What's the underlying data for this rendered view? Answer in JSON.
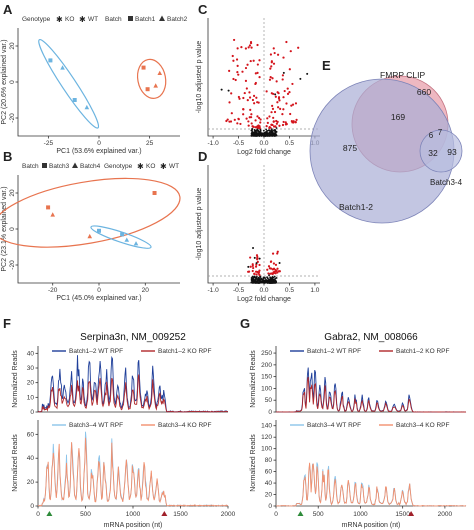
{
  "panels": {
    "A": "A",
    "B": "B",
    "C": "C",
    "D": "D",
    "E": "E",
    "F": "F",
    "G": "G"
  },
  "colors": {
    "ko": "#e8744f",
    "wt": "#6cb4e0",
    "red": "#d4141c",
    "black": "#111111",
    "navy": "#1f3f9a",
    "crimson": "#b0282b",
    "lightblue": "#8cc4ea",
    "salmon": "#f2906e",
    "venn_pink": "#e8a0ac",
    "venn_blue": "#a9aed6",
    "venn_small": "#b8bddf",
    "tri_green": "#2e8b3a",
    "tri_red": "#a0202a"
  },
  "pca": [
    {
      "panel": "A",
      "legend": {
        "genotype_label": "Genotype",
        "ko": "KO",
        "wt": "WT",
        "batch_label": "Batch",
        "batch1": "Batch1",
        "batch2": "Batch2"
      },
      "xlabel": "PC1 (53.6% explained var.)",
      "ylabel": "PC2 (20.6% explained var.)",
      "xticks": [
        "-25",
        "0",
        "25"
      ],
      "yticks": [
        "-20",
        "0",
        "20"
      ],
      "chart_data": {
        "type": "scatter",
        "xlim": [
          -40,
          40
        ],
        "ylim": [
          -30,
          30
        ],
        "points": [
          {
            "g": "KO",
            "b": "Batch1",
            "x": 22,
            "y": 8
          },
          {
            "g": "KO",
            "b": "Batch2",
            "x": 30,
            "y": 5
          },
          {
            "g": "KO",
            "b": "Batch1",
            "x": 24,
            "y": -4
          },
          {
            "g": "KO",
            "b": "Batch2",
            "x": 28,
            "y": -2
          },
          {
            "g": "WT",
            "b": "Batch1",
            "x": -24,
            "y": 12
          },
          {
            "g": "WT",
            "b": "Batch2",
            "x": -18,
            "y": 8
          },
          {
            "g": "WT",
            "b": "Batch1",
            "x": -12,
            "y": -10
          },
          {
            "g": "WT",
            "b": "Batch2",
            "x": -6,
            "y": -14
          }
        ]
      }
    },
    {
      "panel": "B",
      "legend": {
        "batch_label": "Batch",
        "batch3": "Batch3",
        "batch4": "Batch4",
        "genotype_label": "Genotype",
        "ko": "KO",
        "wt": "WT"
      },
      "xlabel": "PC1 (45.0% explained var.)",
      "ylabel": "PC2 (23.1% explained var.)",
      "xticks": [
        "-20",
        "0",
        "20"
      ],
      "yticks": [
        "-20",
        "0",
        "20"
      ],
      "chart_data": {
        "type": "scatter",
        "xlim": [
          -35,
          35
        ],
        "ylim": [
          -30,
          30
        ],
        "points": [
          {
            "g": "KO",
            "b": "Batch3",
            "x": 24,
            "y": 20
          },
          {
            "g": "KO",
            "b": "Batch3",
            "x": -22,
            "y": 12
          },
          {
            "g": "KO",
            "b": "Batch4",
            "x": -20,
            "y": 8
          },
          {
            "g": "KO",
            "b": "Batch4",
            "x": -4,
            "y": -4
          },
          {
            "g": "WT",
            "b": "Batch3",
            "x": 0,
            "y": -1
          },
          {
            "g": "WT",
            "b": "Batch3",
            "x": 10,
            "y": -3
          },
          {
            "g": "WT",
            "b": "Batch4",
            "x": 16,
            "y": -8
          },
          {
            "g": "WT",
            "b": "Batch4",
            "x": 12,
            "y": -6
          }
        ]
      }
    }
  ],
  "volcano": [
    {
      "panel": "C",
      "ylabel": "-log10 adjusted p value",
      "xlabel": "Log2 fold change",
      "xticks": [
        "-1.0",
        "-0.5",
        "0.0",
        "0.5",
        "1.0"
      ],
      "chart_data": {
        "type": "scatter",
        "xlim": [
          -1.1,
          1.1
        ],
        "ylim": [
          0,
          22
        ],
        "threshold_y": 1.3,
        "spread": 1.0,
        "n_red": 170,
        "n_black": 260
      }
    },
    {
      "panel": "D",
      "ylabel": "-log10 adjusted p value",
      "xlabel": "Log2 fold change",
      "xticks": [
        "-1.0",
        "-0.5",
        "0.0",
        "0.5",
        "1.0"
      ],
      "chart_data": {
        "type": "scatter",
        "xlim": [
          -1.1,
          1.1
        ],
        "ylim": [
          0,
          22
        ],
        "threshold_y": 1.3,
        "spread": 0.35,
        "n_red": 55,
        "n_black": 260
      }
    }
  ],
  "venn": {
    "labels": {
      "fmrp": "FMRP CLIP",
      "b12": "Batch1-2",
      "b34": "Batch3-4"
    },
    "counts": {
      "fmrp_only": "660",
      "b12_only": "875",
      "b34_only": "93",
      "fmrp_b12": "169",
      "fmrp_b34": "7",
      "all": "6",
      "b12_b34": "32"
    }
  },
  "profiles": [
    {
      "panel": "F",
      "title": "Serpina3n, NM_009252",
      "xlabel": "mRNA position (nt)",
      "xticks": [
        "0",
        "500",
        "1000",
        "1500",
        "2000"
      ],
      "xmax": 2000,
      "cds": [
        120,
        1330
      ],
      "top": {
        "ylabel": "Normalized Reads",
        "yticks": [
          "0",
          "10",
          "20",
          "30",
          "40"
        ],
        "ymax": 45,
        "legend": [
          "Batch1–2 WT RPF",
          "Batch1–2 KO RPF"
        ],
        "chart_data": {
          "type": "line",
          "start": 40,
          "end": 1350,
          "peaks": [
            [
              150,
              30
            ],
            [
              230,
              36
            ],
            [
              280,
              20
            ],
            [
              350,
              28
            ],
            [
              420,
              40
            ],
            [
              470,
              22
            ],
            [
              540,
              44
            ],
            [
              600,
              30
            ],
            [
              650,
              38
            ],
            [
              720,
              26
            ],
            [
              780,
              42
            ],
            [
              840,
              18
            ],
            [
              920,
              30
            ],
            [
              1000,
              24
            ],
            [
              1060,
              34
            ],
            [
              1140,
              14
            ],
            [
              1210,
              30
            ],
            [
              1280,
              20
            ],
            [
              1320,
              10
            ]
          ],
          "ko_ratio": 0.65
        }
      },
      "bottom": {
        "ylabel": "Normalized Reads",
        "yticks": [
          "0",
          "20",
          "40",
          "60"
        ],
        "ymax": 72,
        "legend": [
          "Batch3–4 WT RPF",
          "Batch3–4 KO RPF"
        ],
        "chart_data": {
          "type": "line",
          "start": 40,
          "end": 1350,
          "peaks": [
            [
              100,
              40
            ],
            [
              160,
              60
            ],
            [
              220,
              54
            ],
            [
              300,
              44
            ],
            [
              360,
              56
            ],
            [
              430,
              48
            ],
            [
              500,
              60
            ],
            [
              570,
              42
            ],
            [
              640,
              58
            ],
            [
              700,
              40
            ],
            [
              780,
              54
            ],
            [
              850,
              36
            ],
            [
              930,
              50
            ],
            [
              1000,
              40
            ],
            [
              1060,
              34
            ],
            [
              1120,
              46
            ],
            [
              1190,
              30
            ],
            [
              1250,
              22
            ],
            [
              1320,
              12
            ]
          ],
          "ko_ratio": 0.95
        }
      }
    },
    {
      "panel": "G",
      "title": "Gabra2, NM_008066",
      "xlabel": "mRNA position (nt)",
      "xticks": [
        "0",
        "500",
        "1000",
        "1500",
        "2000"
      ],
      "xmax": 2250,
      "cds": [
        290,
        1600
      ],
      "top": {
        "ylabel": "Normalized Reads",
        "yticks": [
          "0",
          "50",
          "100",
          "150",
          "200",
          "250"
        ],
        "ymax": 280,
        "legend": [
          "Batch1–2 WT RPF",
          "Batch1–2 KO RPF"
        ],
        "chart_data": {
          "type": "line",
          "start": 240,
          "end": 1620,
          "peaks": [
            [
              330,
              120
            ],
            [
              380,
              200
            ],
            [
              420,
              250
            ],
            [
              460,
              230
            ],
            [
              520,
              180
            ],
            [
              580,
              160
            ],
            [
              640,
              120
            ],
            [
              700,
              140
            ],
            [
              780,
              100
            ],
            [
              860,
              90
            ],
            [
              940,
              80
            ],
            [
              1020,
              70
            ],
            [
              1100,
              64
            ],
            [
              1200,
              56
            ],
            [
              1300,
              50
            ],
            [
              1400,
              44
            ],
            [
              1500,
              40
            ],
            [
              1580,
              80
            ]
          ],
          "ko_ratio": 0.75
        }
      },
      "bottom": {
        "ylabel": "Normalized Reads",
        "yticks": [
          "0",
          "20",
          "40",
          "60",
          "80",
          "100",
          "120",
          "140"
        ],
        "ymax": 150,
        "legend": [
          "Batch3–4 WT RPF",
          "Batch3–4 KO RPF"
        ],
        "chart_data": {
          "type": "line",
          "start": 240,
          "end": 1620,
          "peaks": [
            [
              340,
              60
            ],
            [
              400,
              88
            ],
            [
              440,
              96
            ],
            [
              490,
              90
            ],
            [
              560,
              76
            ],
            [
              620,
              68
            ],
            [
              700,
              60
            ],
            [
              780,
              56
            ],
            [
              860,
              52
            ],
            [
              940,
              46
            ],
            [
              1020,
              44
            ],
            [
              1100,
              40
            ],
            [
              1200,
              36
            ],
            [
              1300,
              34
            ],
            [
              1400,
              30
            ],
            [
              1500,
              28
            ],
            [
              1580,
              36
            ]
          ],
          "ko_ratio": 0.95
        }
      }
    }
  ]
}
